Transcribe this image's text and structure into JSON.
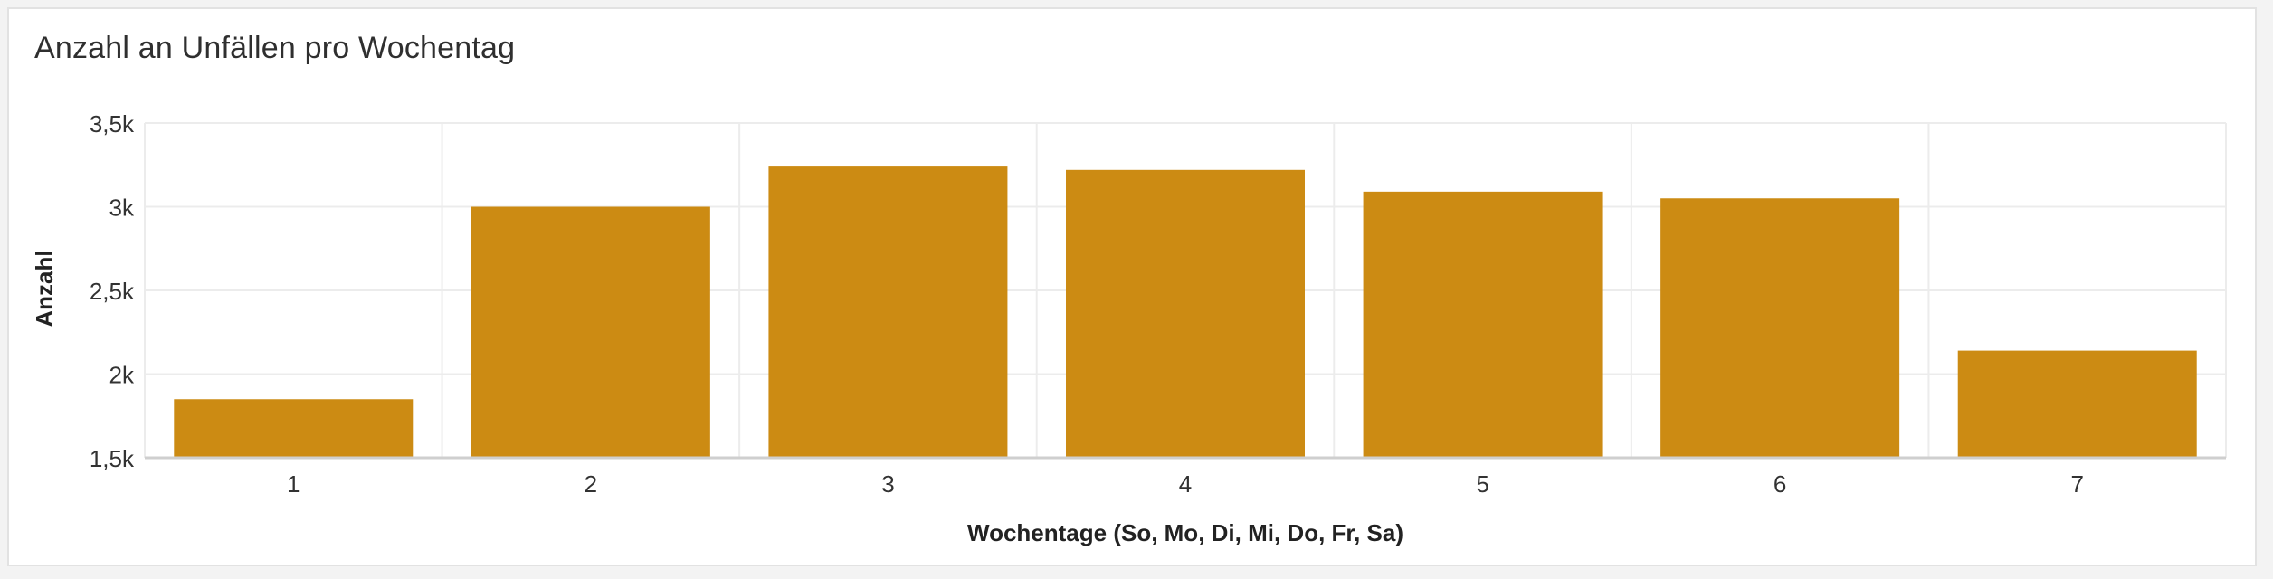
{
  "title": "Anzahl an Unfällen pro Wochentag",
  "colors": {
    "bar": "#cc8b13",
    "grid": "#ececec",
    "axis": "#cfcfcf",
    "text": "#323232"
  },
  "chart_data": {
    "type": "bar",
    "title": "Anzahl an Unfällen pro Wochentag",
    "xlabel": "Wochentage (So, Mo, Di, Mi, Do, Fr, Sa)",
    "ylabel": "Anzahl",
    "categories": [
      "1",
      "2",
      "3",
      "4",
      "5",
      "6",
      "7"
    ],
    "values": [
      1850,
      3000,
      3240,
      3220,
      3090,
      3050,
      2140
    ],
    "ylim": [
      1500,
      3500
    ],
    "yticks": [
      {
        "value": 1500,
        "label": "1,5k"
      },
      {
        "value": 2000,
        "label": "2k"
      },
      {
        "value": 2500,
        "label": "2,5k"
      },
      {
        "value": 3000,
        "label": "3k"
      },
      {
        "value": 3500,
        "label": "3,5k"
      }
    ],
    "grid": true,
    "legend": "none"
  }
}
